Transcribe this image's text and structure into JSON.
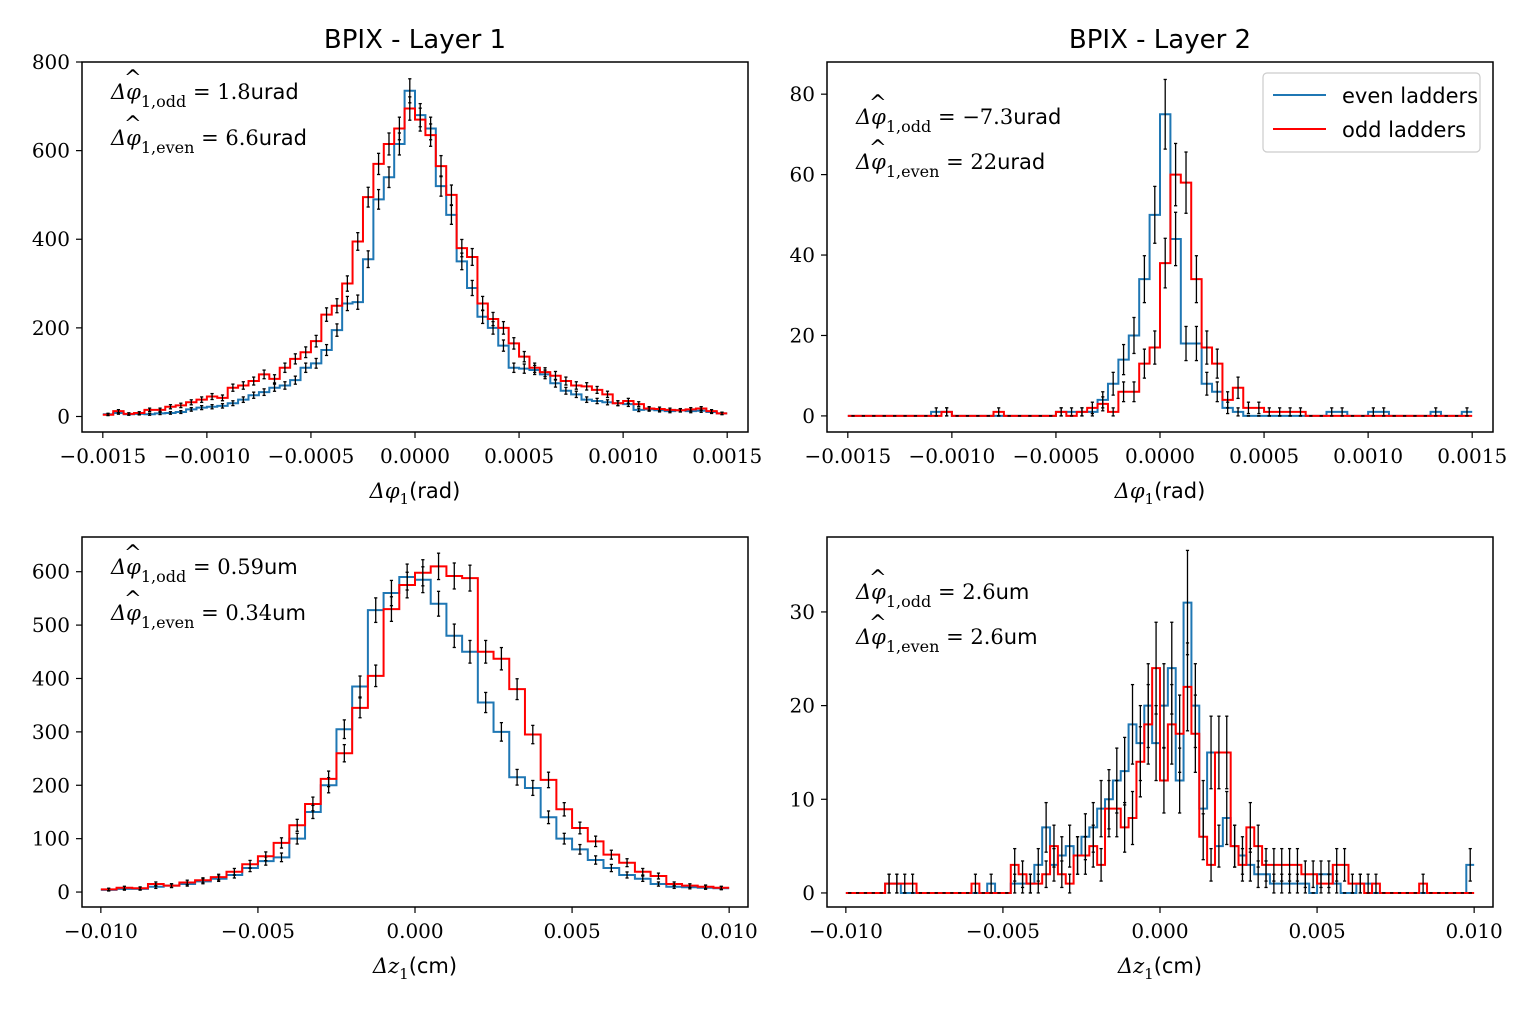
{
  "colors": {
    "even": "#1f77b4",
    "odd": "#ff0000",
    "errorbar": "#000000"
  },
  "legend": {
    "placement": "top-right",
    "even_label": "even ladders",
    "odd_label": "odd ladders"
  },
  "chart_data": [
    {
      "type": "histogram",
      "title": "BPIX - Layer 1",
      "xlabel_prefix": "Δφ",
      "xlabel_sub": "1",
      "xlabel_suffix": "(rad)",
      "xlim": [
        -0.0016,
        0.0016
      ],
      "ylim": [
        -35,
        800
      ],
      "xticks": [
        -0.0015,
        -0.001,
        -0.0005,
        0.0,
        0.0005,
        0.001,
        0.0015
      ],
      "xtick_labels": [
        "−0.0015",
        "−0.0010",
        "−0.0005",
        "0.0000",
        "0.0005",
        "0.0010",
        "0.0015"
      ],
      "yticks": [
        0,
        200,
        400,
        600,
        800
      ],
      "ytick_labels": [
        "0",
        "200",
        "400",
        "600",
        "800"
      ],
      "bins": [
        -0.0015,
        0.0015,
        60
      ],
      "annotations": [
        {
          "head": "Δφ",
          "sub": "1,odd",
          "rest": " = 1.8",
          "unit": "urad"
        },
        {
          "head": "Δφ",
          "sub": "1,even",
          "rest": " = 6.6",
          "unit": "urad"
        }
      ],
      "series": [
        {
          "name": "even ladders",
          "color_key": "even",
          "values": [
            5,
            8,
            5,
            6,
            5,
            7,
            8,
            10,
            16,
            20,
            22,
            24,
            30,
            38,
            48,
            55,
            65,
            70,
            82,
            110,
            120,
            150,
            195,
            255,
            258,
            355,
            490,
            540,
            615,
            735,
            680,
            650,
            520,
            455,
            350,
            290,
            225,
            200,
            160,
            110,
            108,
            105,
            95,
            75,
            58,
            50,
            38,
            35,
            32,
            30,
            28,
            15,
            16,
            14,
            12,
            14,
            12,
            13,
            10,
            7
          ]
        },
        {
          "name": "odd ladders",
          "color_key": "odd",
          "values": [
            4,
            12,
            6,
            8,
            15,
            15,
            22,
            25,
            32,
            38,
            45,
            42,
            65,
            70,
            80,
            95,
            85,
            110,
            130,
            145,
            170,
            230,
            250,
            300,
            395,
            495,
            570,
            615,
            650,
            695,
            670,
            635,
            565,
            500,
            380,
            360,
            255,
            220,
            200,
            165,
            135,
            110,
            100,
            92,
            80,
            70,
            68,
            60,
            50,
            30,
            35,
            28,
            18,
            17,
            15,
            14,
            16,
            18,
            12,
            7
          ]
        }
      ]
    },
    {
      "type": "histogram",
      "title": "BPIX - Layer 2",
      "xlabel_prefix": "Δφ",
      "xlabel_sub": "1",
      "xlabel_suffix": "(rad)",
      "xlim": [
        -0.0016,
        0.0016
      ],
      "ylim": [
        -4,
        88
      ],
      "xticks": [
        -0.0015,
        -0.001,
        -0.0005,
        0.0,
        0.0005,
        0.001,
        0.0015
      ],
      "xtick_labels": [
        "−0.0015",
        "−0.0010",
        "−0.0005",
        "0.0000",
        "0.0005",
        "0.0010",
        "0.0015"
      ],
      "yticks": [
        0,
        20,
        40,
        60,
        80
      ],
      "ytick_labels": [
        "0",
        "20",
        "40",
        "60",
        "80"
      ],
      "bins": [
        -0.0015,
        0.0015,
        60
      ],
      "show_legend": true,
      "annotations": [
        {
          "head": "Δφ",
          "sub": "1,odd",
          "rest": " = −7.3",
          "unit": "urad"
        },
        {
          "head": "Δφ",
          "sub": "1,even",
          "rest": " = 22",
          "unit": "urad"
        }
      ],
      "series": [
        {
          "name": "even ladders",
          "color_key": "even",
          "values": [
            0,
            0,
            0,
            0,
            0,
            0,
            0,
            0,
            1,
            1,
            0,
            0,
            0,
            0,
            0,
            0,
            0,
            0,
            0,
            0,
            1,
            1,
            1,
            1,
            4,
            8,
            14,
            20,
            34,
            50,
            75,
            44,
            18,
            18,
            8,
            6,
            2,
            1,
            0,
            0,
            0,
            0,
            0,
            0,
            0,
            0,
            1,
            1,
            0,
            0,
            1,
            1,
            0,
            0,
            0,
            0,
            1,
            0,
            0,
            1
          ]
        },
        {
          "name": "odd ladders",
          "color_key": "odd",
          "values": [
            0,
            0,
            0,
            0,
            0,
            0,
            0,
            0,
            0,
            1,
            0,
            0,
            0,
            0,
            1,
            0,
            0,
            0,
            0,
            0,
            1,
            0,
            1,
            2,
            3,
            1,
            6,
            6,
            13,
            17,
            38,
            60,
            58,
            34,
            17,
            13,
            4,
            7,
            2,
            2,
            1,
            1,
            1,
            1,
            0,
            0,
            0,
            0,
            0,
            0,
            0,
            0,
            0,
            0,
            0,
            0,
            0,
            0,
            0,
            0
          ]
        }
      ]
    },
    {
      "type": "histogram",
      "title": "",
      "xlabel_prefix": "Δz",
      "xlabel_sub": "1",
      "xlabel_suffix": "(cm)",
      "xlim": [
        -0.0106,
        0.0106
      ],
      "ylim": [
        -28,
        665
      ],
      "xticks": [
        -0.01,
        -0.005,
        0.0,
        0.005,
        0.01
      ],
      "xtick_labels": [
        "−0.010",
        "−0.005",
        "0.000",
        "0.005",
        "0.010"
      ],
      "yticks": [
        0,
        100,
        200,
        300,
        400,
        500,
        600
      ],
      "ytick_labels": [
        "0",
        "100",
        "200",
        "300",
        "400",
        "500",
        "600"
      ],
      "bins": [
        -0.01,
        0.01,
        40
      ],
      "annotations": [
        {
          "head": "Δφ",
          "sub": "1,odd",
          "rest": " = 0.59",
          "unit": "um"
        },
        {
          "head": "Δφ",
          "sub": "1,even",
          "rest": " = 0.34",
          "unit": "um"
        }
      ],
      "series": [
        {
          "name": "even ladders",
          "color_key": "even",
          "values": [
            4,
            6,
            6,
            10,
            12,
            15,
            20,
            25,
            32,
            45,
            58,
            65,
            100,
            150,
            200,
            305,
            385,
            528,
            560,
            590,
            585,
            540,
            480,
            450,
            355,
            300,
            215,
            195,
            140,
            100,
            80,
            60,
            45,
            32,
            25,
            15,
            10,
            9,
            8,
            7
          ]
        },
        {
          "name": "odd ladders",
          "color_key": "odd",
          "values": [
            5,
            8,
            7,
            15,
            12,
            18,
            22,
            28,
            38,
            52,
            67,
            92,
            125,
            165,
            212,
            260,
            345,
            405,
            530,
            575,
            598,
            610,
            592,
            588,
            450,
            437,
            380,
            295,
            210,
            155,
            120,
            95,
            70,
            55,
            38,
            30,
            15,
            12,
            10,
            8
          ]
        }
      ]
    },
    {
      "type": "histogram",
      "title": "",
      "xlabel_prefix": "Δz",
      "xlabel_sub": "1",
      "xlabel_suffix": "(cm)",
      "xlim": [
        -0.0106,
        0.0106
      ],
      "ylim": [
        -1.5,
        38
      ],
      "xticks": [
        -0.01,
        -0.005,
        0.0,
        0.005,
        0.01
      ],
      "xtick_labels": [
        "−0.010",
        "−0.005",
        "0.000",
        "0.005",
        "0.010"
      ],
      "yticks": [
        0,
        10,
        20,
        30
      ],
      "ytick_labels": [
        "0",
        "10",
        "20",
        "30"
      ],
      "bins": [
        -0.01,
        0.01,
        80
      ],
      "annotations": [
        {
          "head": "Δφ",
          "sub": "1,odd",
          "rest": " = 2.6",
          "unit": "um"
        },
        {
          "head": "Δφ",
          "sub": "1,even",
          "rest": " = 2.6",
          "unit": "um"
        }
      ],
      "series": [
        {
          "name": "even ladders",
          "color_key": "even",
          "values": [
            0,
            0,
            0,
            0,
            0,
            1,
            1,
            0,
            0,
            0,
            0,
            0,
            0,
            0,
            0,
            0,
            0,
            0,
            1,
            0,
            0,
            1,
            1,
            1,
            3,
            7,
            3,
            4,
            5,
            4,
            6,
            7,
            9,
            10,
            12,
            13,
            18,
            16,
            20,
            16,
            20,
            24,
            12,
            31,
            20,
            9,
            15,
            5,
            8,
            5,
            4,
            3,
            2,
            2,
            1,
            1,
            1,
            1,
            1,
            0,
            2,
            2,
            1,
            0,
            0,
            1,
            1,
            0,
            0,
            0,
            0,
            0,
            0,
            0,
            0,
            0,
            0,
            0,
            0,
            3
          ]
        },
        {
          "name": "odd ladders",
          "color_key": "odd",
          "values": [
            0,
            0,
            0,
            0,
            0,
            1,
            1,
            1,
            1,
            0,
            0,
            0,
            0,
            0,
            0,
            0,
            1,
            0,
            0,
            0,
            0,
            3,
            2,
            1,
            1,
            2,
            5,
            2,
            1,
            4,
            4,
            5,
            3,
            9,
            9,
            7,
            8,
            14,
            18,
            24,
            12,
            18,
            17,
            22,
            17,
            6,
            3,
            15,
            15,
            5,
            3,
            7,
            5,
            3,
            3,
            3,
            3,
            3,
            2,
            2,
            1,
            1,
            3,
            3,
            1,
            1,
            0,
            1,
            0,
            0,
            0,
            0,
            0,
            1,
            0,
            0,
            0,
            0,
            0,
            0
          ]
        }
      ]
    }
  ]
}
